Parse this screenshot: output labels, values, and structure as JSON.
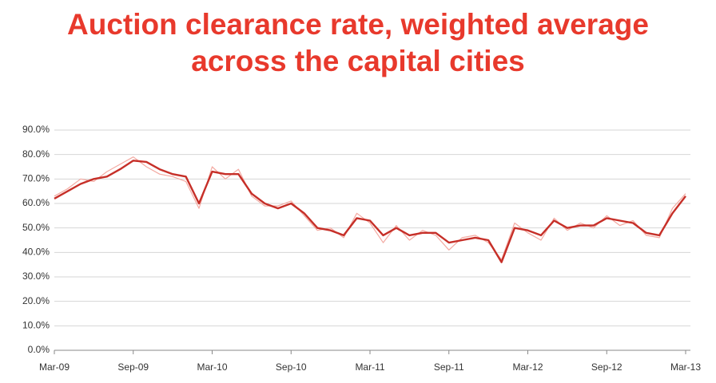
{
  "chart_data": {
    "type": "line",
    "title": "Auction clearance rate, weighted average across the capital cities",
    "categories": [
      "Mar-09",
      null,
      null,
      null,
      null,
      null,
      "Sep-09",
      null,
      null,
      null,
      null,
      null,
      "Mar-10",
      null,
      null,
      null,
      null,
      null,
      "Sep-10",
      null,
      null,
      null,
      null,
      null,
      "Mar-11",
      null,
      null,
      null,
      null,
      null,
      "Sep-11",
      null,
      null,
      null,
      null,
      null,
      "Mar-12",
      null,
      null,
      null,
      null,
      null,
      "Sep-12",
      null,
      null,
      null,
      null,
      null,
      "Mar-13"
    ],
    "series": [
      {
        "color": "#f3aaa2",
        "width": 1.2,
        "values": [
          63,
          66,
          70,
          69,
          73,
          76,
          79,
          75,
          72,
          71,
          69,
          58,
          75,
          70,
          74,
          63,
          59,
          59,
          61,
          55,
          49,
          50,
          46,
          56,
          52,
          44,
          51,
          45,
          49,
          47,
          41,
          46,
          47,
          44,
          37,
          52,
          48,
          45,
          54,
          49,
          52,
          50,
          55,
          51,
          53,
          47,
          46,
          58,
          64
        ]
      },
      {
        "color": "#c62f28",
        "width": 2.4,
        "values": [
          62,
          65,
          68,
          70,
          71,
          74,
          77.5,
          77,
          74,
          72,
          71,
          60,
          73,
          72,
          72,
          64,
          60,
          58,
          60,
          56,
          50,
          49,
          47,
          54,
          53,
          47,
          50,
          47,
          48,
          48,
          44,
          45,
          46,
          45,
          36,
          50,
          49,
          47,
          53,
          50,
          51,
          51,
          54,
          53,
          52,
          48,
          47,
          56,
          63
        ]
      }
    ],
    "ylim": [
      0,
      90
    ],
    "yticks": [
      {
        "value": 0,
        "label": "0.0%"
      },
      {
        "value": 10,
        "label": "10.0%"
      },
      {
        "value": 20,
        "label": "20.0%"
      },
      {
        "value": 30,
        "label": "30.0%"
      },
      {
        "value": 40,
        "label": "40.0%"
      },
      {
        "value": 50,
        "label": "50.0%"
      },
      {
        "value": 60,
        "label": "60.0%"
      },
      {
        "value": 70,
        "label": "70.0%"
      },
      {
        "value": 80,
        "label": "80.0%"
      },
      {
        "value": 90,
        "label": "90.0%"
      }
    ],
    "grid": true
  }
}
